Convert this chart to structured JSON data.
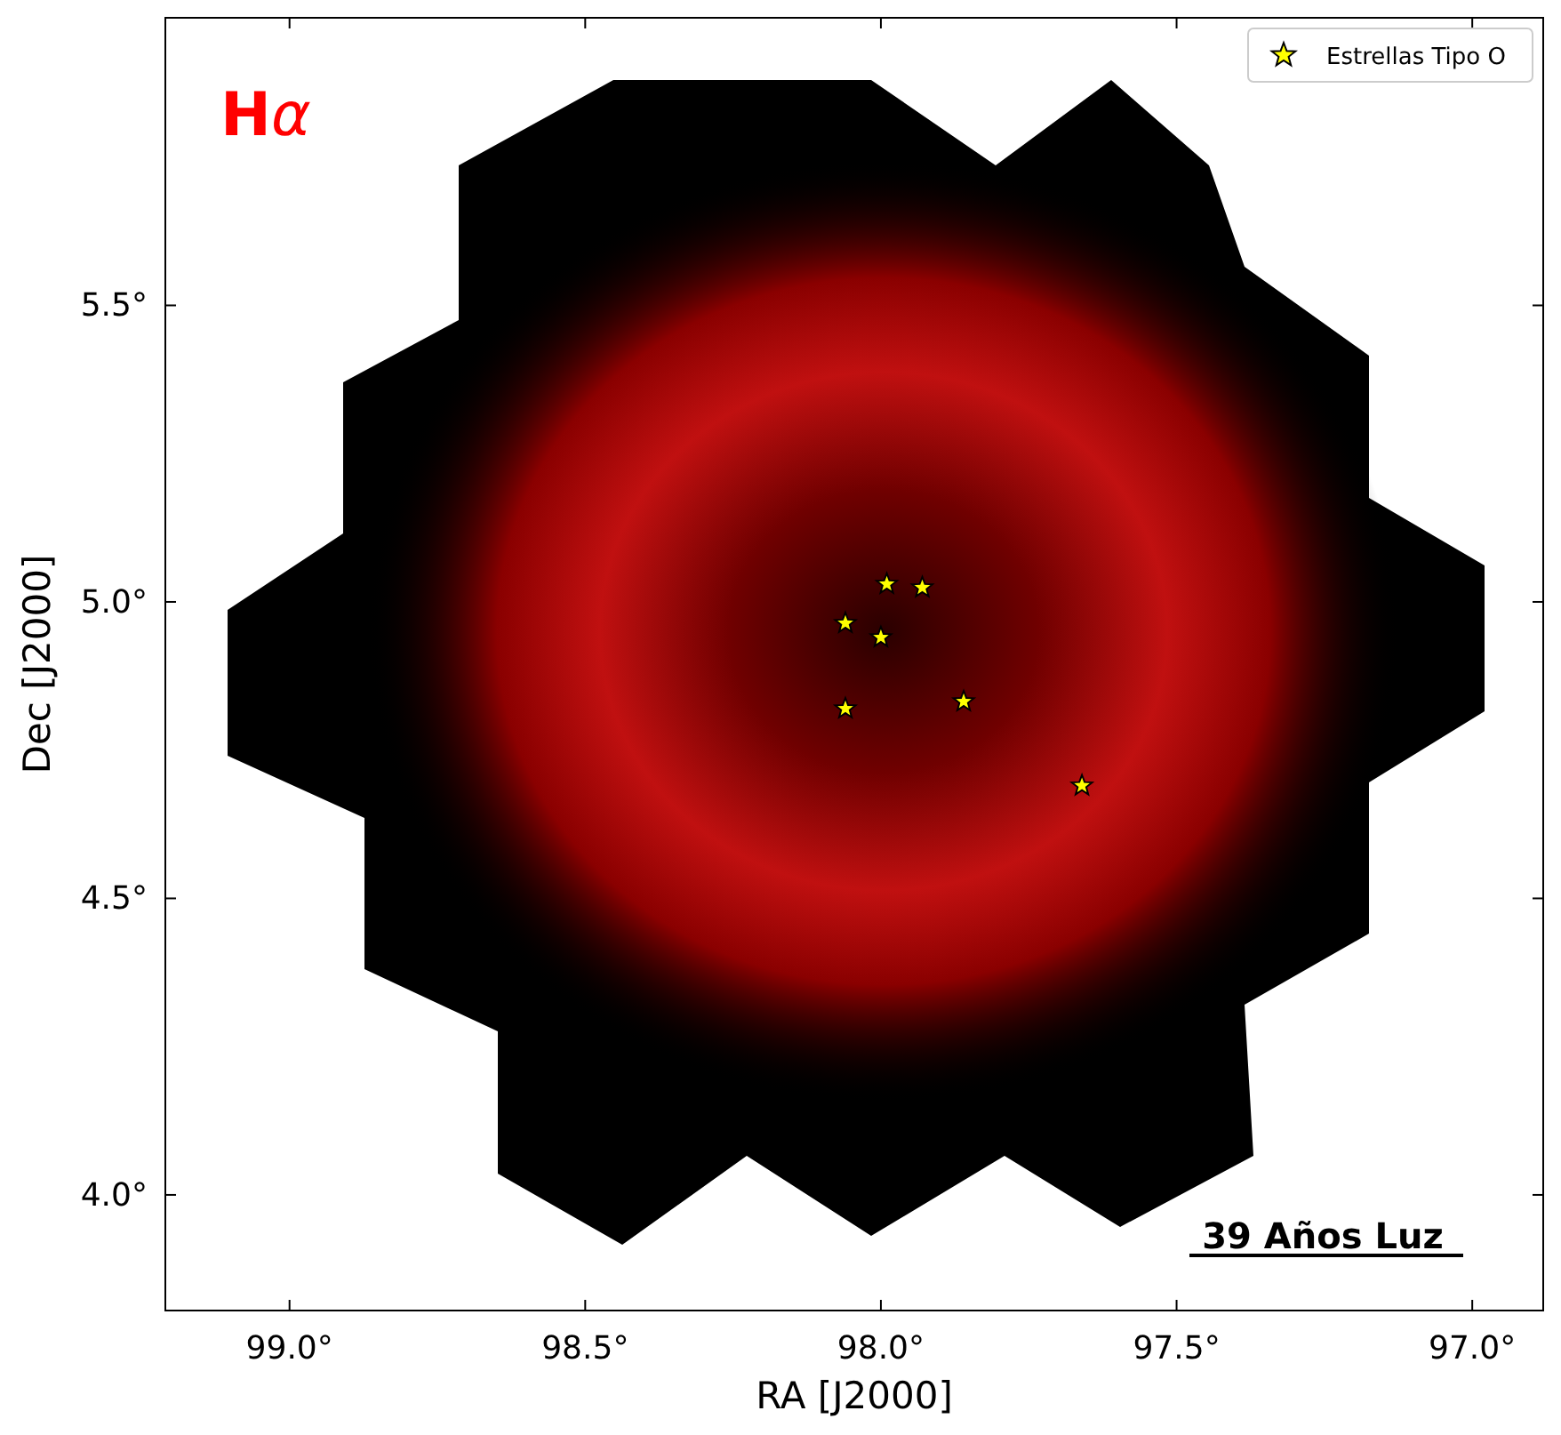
{
  "chart_data": {
    "type": "scatter",
    "xlabel": "RA [J2000]",
    "ylabel": "Dec [J2000]",
    "xlim": [
      99.21,
      96.88
    ],
    "ylim": [
      3.805,
      5.985
    ],
    "xticks": [
      {
        "value": 99.0,
        "label": "99.0°"
      },
      {
        "value": 98.5,
        "label": "98.5°"
      },
      {
        "value": 98.0,
        "label": "98.0°"
      },
      {
        "value": 97.5,
        "label": "97.5°"
      },
      {
        "value": 97.0,
        "label": "97.0°"
      }
    ],
    "yticks": [
      {
        "value": 4.0,
        "label": "4.0°"
      },
      {
        "value": 4.5,
        "label": "4.5°"
      },
      {
        "value": 5.0,
        "label": "5.0°"
      },
      {
        "value": 5.5,
        "label": "5.5°"
      }
    ],
    "series": [
      {
        "name": "Estrellas Tipo O",
        "color": "#ffff00",
        "x": [
          97.99,
          97.93,
          98.06,
          98.0,
          98.06,
          97.86,
          97.66
        ],
        "values": [
          5.03,
          5.024,
          4.964,
          4.94,
          4.82,
          4.832,
          4.69
        ]
      }
    ],
    "marker": "star",
    "legend": "top right",
    "grid": false,
    "annotations": [
      "Hα",
      "39 Años Luz"
    ]
  }
}
